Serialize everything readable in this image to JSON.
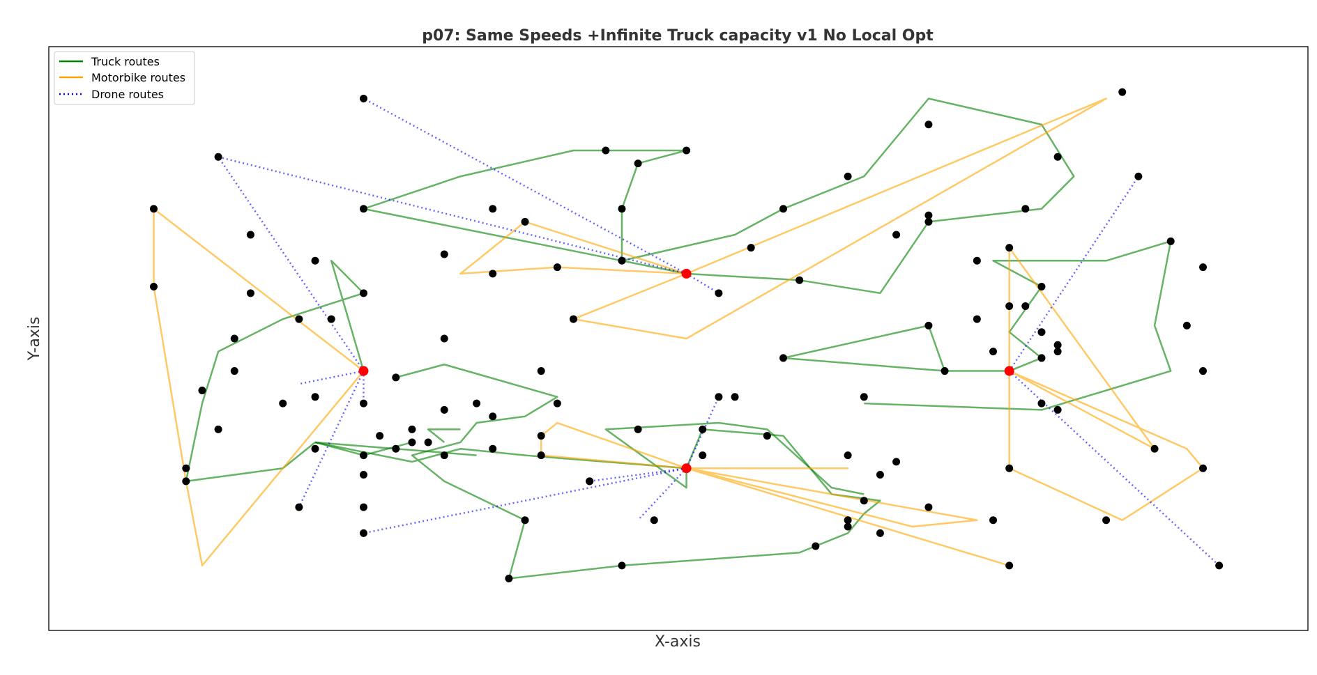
{
  "chart_data": {
    "type": "scatter",
    "title": "p07: Same Speeds +Infinite Truck capacity v1 No Local Opt",
    "xlabel": "X-axis",
    "ylabel": "Y-axis",
    "xlim": [
      0,
      78
    ],
    "ylim": [
      0,
      90
    ],
    "ticks_visible": false,
    "grid": false,
    "legend_position": "top-left",
    "legend": [
      {
        "name": "Truck routes",
        "color": "#008000",
        "style": "solid"
      },
      {
        "name": "Motorbike routes",
        "color": "#FFA500",
        "style": "solid"
      },
      {
        "name": "Drone routes",
        "color": "#0000FF",
        "style": "dotted"
      }
    ],
    "depots": [
      [
        19.5,
        40
      ],
      [
        39.5,
        55
      ],
      [
        39.5,
        25
      ],
      [
        59.5,
        40
      ]
    ],
    "customers": [
      [
        19.5,
        82
      ],
      [
        10.5,
        73
      ],
      [
        6.5,
        65
      ],
      [
        6.5,
        53
      ],
      [
        12.5,
        61
      ],
      [
        16.5,
        57
      ],
      [
        17.5,
        48
      ],
      [
        19.5,
        52
      ],
      [
        19.5,
        65
      ],
      [
        27.5,
        65
      ],
      [
        34.5,
        74
      ],
      [
        39.5,
        74
      ],
      [
        36.5,
        72
      ],
      [
        35.5,
        65
      ],
      [
        35.5,
        57
      ],
      [
        41.5,
        52
      ],
      [
        41.5,
        36
      ],
      [
        24.5,
        58
      ],
      [
        21.5,
        39
      ],
      [
        24.5,
        45
      ],
      [
        27.5,
        55
      ],
      [
        31.5,
        56
      ],
      [
        29.5,
        63
      ],
      [
        32.5,
        48
      ],
      [
        14.5,
        35
      ],
      [
        16.5,
        36
      ],
      [
        19.5,
        35
      ],
      [
        19.5,
        15
      ],
      [
        9.5,
        37
      ],
      [
        11.5,
        45
      ],
      [
        15.5,
        48
      ],
      [
        12.5,
        52
      ],
      [
        8.5,
        23
      ],
      [
        11.5,
        40
      ],
      [
        10.5,
        31
      ],
      [
        16.5,
        28
      ],
      [
        8.5,
        25
      ],
      [
        15.5,
        19
      ],
      [
        30.5,
        40
      ],
      [
        31.5,
        35
      ],
      [
        30.5,
        30
      ],
      [
        30.5,
        27
      ],
      [
        33.5,
        23
      ],
      [
        36.5,
        31
      ],
      [
        40.5,
        31
      ],
      [
        44.5,
        30
      ],
      [
        49.5,
        27
      ],
      [
        50.5,
        20
      ],
      [
        51.5,
        24
      ],
      [
        52.5,
        26
      ],
      [
        49.5,
        16
      ],
      [
        47.5,
        13
      ],
      [
        35.5,
        10
      ],
      [
        28.5,
        8
      ],
      [
        29.5,
        17
      ],
      [
        27.5,
        33
      ],
      [
        26.5,
        35
      ],
      [
        24.5,
        34
      ],
      [
        22.5,
        31
      ],
      [
        22.5,
        29
      ],
      [
        24.5,
        27
      ],
      [
        23.5,
        29
      ],
      [
        20.5,
        30
      ],
      [
        21.5,
        28
      ],
      [
        19.5,
        27
      ],
      [
        27.5,
        28
      ],
      [
        19.5,
        24
      ],
      [
        19.5,
        19
      ],
      [
        33.5,
        23
      ],
      [
        37.5,
        17
      ],
      [
        40.5,
        27
      ],
      [
        42.5,
        36
      ],
      [
        45.5,
        42
      ],
      [
        50.5,
        36
      ],
      [
        54.5,
        47
      ],
      [
        55.5,
        40
      ],
      [
        52.5,
        61
      ],
      [
        54.5,
        64
      ],
      [
        46.5,
        54
      ],
      [
        45.5,
        65
      ],
      [
        43.5,
        59
      ],
      [
        49.5,
        70
      ],
      [
        54.5,
        78
      ],
      [
        62.5,
        73
      ],
      [
        66.5,
        83
      ],
      [
        67.5,
        70
      ],
      [
        60.5,
        65
      ],
      [
        59.5,
        59
      ],
      [
        54.5,
        63
      ],
      [
        57.5,
        57
      ],
      [
        59.5,
        50
      ],
      [
        61.5,
        53
      ],
      [
        62.5,
        43
      ],
      [
        61.5,
        42
      ],
      [
        57.5,
        48
      ],
      [
        69.5,
        60
      ],
      [
        71.5,
        56
      ],
      [
        70.5,
        47
      ],
      [
        71.5,
        40
      ],
      [
        61.5,
        35
      ],
      [
        59.5,
        25
      ],
      [
        65.5,
        17
      ],
      [
        71.5,
        25
      ],
      [
        68.5,
        28
      ],
      [
        62.5,
        34
      ],
      [
        49.5,
        17
      ],
      [
        51.5,
        15
      ],
      [
        54.5,
        19
      ],
      [
        58.5,
        17
      ],
      [
        59.5,
        10
      ],
      [
        72.5,
        10
      ],
      [
        60.5,
        50
      ],
      [
        62.5,
        44
      ],
      [
        61.5,
        46
      ],
      [
        58.5,
        43
      ]
    ],
    "truck_routes": [
      [
        [
          39.5,
          55
        ],
        [
          35.5,
          57
        ],
        [
          35.5,
          65
        ],
        [
          36.5,
          72
        ],
        [
          39.5,
          74
        ],
        [
          32.5,
          74
        ],
        [
          25.5,
          70
        ],
        [
          19.5,
          65
        ],
        [
          39.5,
          55
        ],
        [
          46.5,
          54
        ],
        [
          51.5,
          52
        ],
        [
          54.5,
          63
        ],
        [
          61.5,
          65
        ],
        [
          63.5,
          70
        ],
        [
          61.5,
          78
        ],
        [
          54.5,
          82
        ],
        [
          50.5,
          70
        ],
        [
          45.5,
          65
        ],
        [
          42.5,
          61
        ],
        [
          35.5,
          57
        ]
      ],
      [
        [
          19.5,
          40
        ],
        [
          17.5,
          57
        ],
        [
          19.5,
          52
        ],
        [
          14.5,
          48
        ],
        [
          10.5,
          43
        ],
        [
          9.5,
          35
        ],
        [
          8.5,
          23
        ],
        [
          14.5,
          25
        ],
        [
          16.5,
          29
        ],
        [
          22.5,
          26
        ],
        [
          25.5,
          28
        ],
        [
          29.5,
          27
        ],
        [
          39.5,
          25
        ],
        [
          40.5,
          31
        ],
        [
          45.5,
          30
        ],
        [
          48.5,
          21
        ],
        [
          51.5,
          20
        ],
        [
          50.5,
          18
        ],
        [
          49.5,
          15
        ],
        [
          46.5,
          12
        ],
        [
          35.5,
          10
        ],
        [
          28.5,
          8
        ],
        [
          29.5,
          17
        ],
        [
          24.5,
          23
        ],
        [
          22.5,
          27
        ],
        [
          25.5,
          29
        ],
        [
          26.5,
          32
        ],
        [
          29.5,
          33
        ],
        [
          31.5,
          36
        ],
        [
          24.5,
          41
        ],
        [
          21.5,
          39
        ]
      ],
      [
        [
          59.5,
          40
        ],
        [
          55.5,
          40
        ],
        [
          54.5,
          47
        ],
        [
          45.5,
          42
        ],
        [
          55.5,
          40
        ]
      ],
      [
        [
          59.5,
          40
        ],
        [
          61.5,
          42
        ],
        [
          59.5,
          46
        ],
        [
          61.5,
          53
        ],
        [
          58.5,
          57
        ],
        [
          65.5,
          57
        ],
        [
          69.5,
          60
        ],
        [
          68.5,
          47
        ],
        [
          69.5,
          40
        ],
        [
          61.5,
          34
        ],
        [
          50.5,
          35
        ]
      ],
      [
        [
          39.5,
          25
        ],
        [
          39.5,
          22
        ],
        [
          34.5,
          31
        ],
        [
          41.5,
          32
        ],
        [
          44.5,
          31
        ],
        [
          48.5,
          22
        ],
        [
          50.5,
          21
        ]
      ],
      [
        [
          16.5,
          29
        ],
        [
          26.5,
          27
        ]
      ],
      [
        [
          24.5,
          29
        ],
        [
          23.5,
          31
        ],
        [
          25.5,
          31
        ]
      ],
      [
        [
          16.5,
          29
        ],
        [
          19.5,
          27
        ],
        [
          22.5,
          29
        ]
      ]
    ],
    "motorbike_routes": [
      [
        [
          19.5,
          40
        ],
        [
          6.5,
          65
        ],
        [
          6.5,
          53
        ],
        [
          8.5,
          23
        ],
        [
          9.5,
          10
        ],
        [
          19.5,
          40
        ]
      ],
      [
        [
          39.5,
          55
        ],
        [
          29.5,
          63
        ],
        [
          25.5,
          55
        ],
        [
          31.5,
          56
        ],
        [
          39.5,
          55
        ]
      ],
      [
        [
          39.5,
          55
        ],
        [
          65.5,
          82
        ],
        [
          39.5,
          45
        ],
        [
          32.5,
          48
        ],
        [
          39.5,
          55
        ]
      ],
      [
        [
          39.5,
          25
        ],
        [
          30.5,
          27
        ],
        [
          30.5,
          30
        ],
        [
          31.5,
          32
        ],
        [
          39.5,
          25
        ],
        [
          49.5,
          25
        ],
        [
          39.5,
          25
        ],
        [
          59.5,
          10
        ],
        [
          39.5,
          25
        ],
        [
          53.5,
          16
        ],
        [
          57.5,
          17
        ],
        [
          39.5,
          25
        ]
      ],
      [
        [
          59.5,
          40
        ],
        [
          70.5,
          28
        ],
        [
          71.5,
          25
        ],
        [
          66.5,
          17
        ],
        [
          59.5,
          25
        ],
        [
          59.5,
          59
        ],
        [
          68.5,
          28
        ],
        [
          59.5,
          40
        ]
      ]
    ],
    "drone_routes": [
      [
        [
          19.5,
          40
        ],
        [
          10.5,
          73
        ]
      ],
      [
        [
          19.5,
          40
        ],
        [
          15.5,
          38
        ]
      ],
      [
        [
          19.5,
          40
        ],
        [
          19.5,
          35
        ]
      ],
      [
        [
          19.5,
          40
        ],
        [
          15.5,
          19
        ]
      ],
      [
        [
          39.5,
          55
        ],
        [
          19.5,
          82
        ]
      ],
      [
        [
          39.5,
          55
        ],
        [
          10.5,
          73
        ]
      ],
      [
        [
          39.5,
          55
        ],
        [
          41.5,
          52
        ]
      ],
      [
        [
          39.5,
          25
        ],
        [
          19.5,
          15
        ]
      ],
      [
        [
          39.5,
          25
        ],
        [
          33.5,
          23
        ]
      ],
      [
        [
          39.5,
          25
        ],
        [
          36.5,
          17
        ]
      ],
      [
        [
          39.5,
          25
        ],
        [
          41.5,
          36
        ]
      ],
      [
        [
          59.5,
          40
        ],
        [
          67.5,
          70
        ]
      ],
      [
        [
          59.5,
          40
        ],
        [
          72.5,
          10
        ]
      ]
    ]
  }
}
